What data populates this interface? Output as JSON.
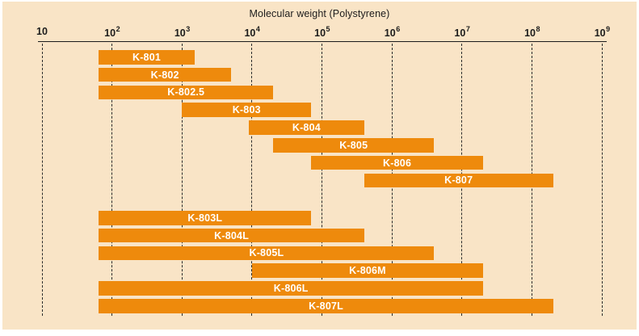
{
  "colors": {
    "background": "#f9e4c6",
    "bar": "#ee8a0c",
    "bar_text": "#ffffff",
    "axis_text": "#1c1c1c",
    "grid_line": "#2b2b2b",
    "border": "#ffffff"
  },
  "chart_data": {
    "type": "bar",
    "orientation": "horizontal-range",
    "title": "Molecular weight (Polystyrene)",
    "x_axis": {
      "scale": "log10",
      "min": 10,
      "max": 1000000000,
      "tick_base": "10",
      "tick_exponents": [
        1,
        2,
        3,
        4,
        5,
        6,
        7,
        8,
        9
      ]
    },
    "grid": "dashed-vertical-per-decade",
    "legend": "none",
    "series": [
      {
        "name": "K-801",
        "group": 1,
        "mw_range": [
          65,
          1500
        ]
      },
      {
        "name": "K-802",
        "group": 1,
        "mw_range": [
          65,
          5000
        ]
      },
      {
        "name": "K-802.5",
        "group": 1,
        "mw_range": [
          65,
          20000
        ]
      },
      {
        "name": "K-803",
        "group": 1,
        "mw_range": [
          1000,
          70000
        ]
      },
      {
        "name": "K-804",
        "group": 1,
        "mw_range": [
          9000,
          400000
        ]
      },
      {
        "name": "K-805",
        "group": 1,
        "mw_range": [
          20000,
          4000000
        ]
      },
      {
        "name": "K-806",
        "group": 1,
        "mw_range": [
          70000,
          20000000
        ]
      },
      {
        "name": "K-807",
        "group": 1,
        "mw_range": [
          400000,
          200000000
        ]
      },
      {
        "name": "K-803L",
        "group": 2,
        "mw_range": [
          65,
          70000
        ]
      },
      {
        "name": "K-804L",
        "group": 2,
        "mw_range": [
          65,
          400000
        ]
      },
      {
        "name": "K-805L",
        "group": 2,
        "mw_range": [
          65,
          4000000
        ]
      },
      {
        "name": "K-806M",
        "group": 2,
        "mw_range": [
          10000,
          20000000
        ]
      },
      {
        "name": "K-806L",
        "group": 2,
        "mw_range": [
          65,
          20000000
        ]
      },
      {
        "name": "K-807L",
        "group": 2,
        "mw_range": [
          65,
          200000000
        ]
      }
    ]
  }
}
